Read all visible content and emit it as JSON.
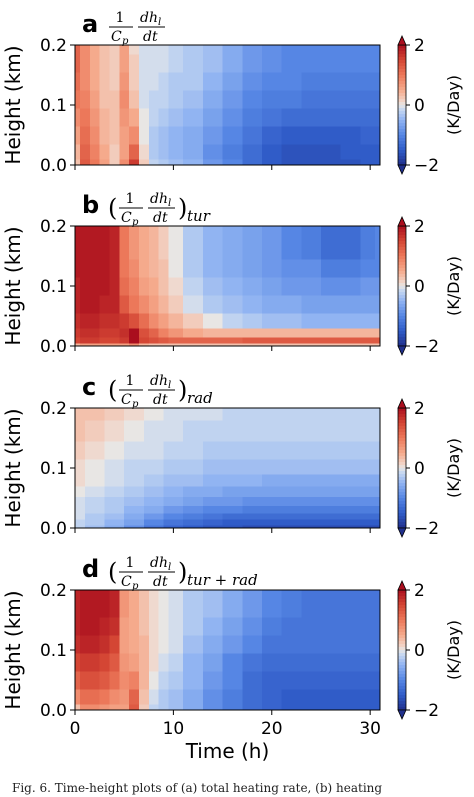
{
  "chart_data": [
    {
      "type": "heatmap",
      "panel_label": "a",
      "title_parts": {
        "lhs": "",
        "frac_num": "1",
        "frac_den": "C",
        "frac_den_sub": "p",
        "deriv_num": "dh",
        "deriv_num_sub": "l",
        "deriv_den": "dt",
        "rhs_sub": ""
      },
      "ylabel": "Height (km)",
      "yticks": [
        "0.0",
        "0.1",
        "0.2"
      ],
      "ylim": [
        0,
        0.2
      ],
      "xlim": [
        0,
        31
      ],
      "xticks_shown": false,
      "colorbar": {
        "label": "(K/Day)",
        "ticks": [
          "2",
          "0",
          "−2"
        ],
        "range": [
          -2,
          2
        ]
      },
      "grid": {
        "x": [
          0,
          1,
          2,
          3,
          4,
          5,
          6,
          7,
          8,
          9,
          10,
          12,
          14,
          16,
          18,
          20,
          22,
          24,
          26,
          28,
          30,
          31
        ],
        "y": [
          0,
          0.02,
          0.05,
          0.08,
          0.11,
          0.14,
          0.17,
          0.2
        ],
        "values": [
          [
            0.3,
            1.3,
            1.0,
            0.6,
            0.2,
            0.8,
            1.6,
            0.2,
            -0.2,
            -0.3,
            -0.4,
            -0.5,
            -0.8,
            -1.0,
            -1.3,
            -1.5,
            -1.6,
            -1.6,
            -1.6,
            -1.6,
            -1.5,
            -1.5
          ],
          [
            0.4,
            1.2,
            0.9,
            0.5,
            0.2,
            0.6,
            1.2,
            0.1,
            -0.3,
            -0.4,
            -0.5,
            -0.6,
            -0.9,
            -1.1,
            -1.3,
            -1.5,
            -1.6,
            -1.6,
            -1.6,
            -1.5,
            -1.5,
            -1.5
          ],
          [
            0.6,
            1.1,
            0.8,
            0.4,
            0.3,
            0.6,
            0.8,
            0.0,
            -0.3,
            -0.4,
            -0.5,
            -0.6,
            -0.8,
            -1.0,
            -1.2,
            -1.4,
            -1.5,
            -1.5,
            -1.5,
            -1.5,
            -1.4,
            -1.4
          ],
          [
            0.8,
            1.0,
            0.7,
            0.4,
            0.3,
            0.7,
            0.5,
            0.0,
            -0.2,
            -0.3,
            -0.4,
            -0.5,
            -0.7,
            -0.9,
            -1.1,
            -1.2,
            -1.3,
            -1.3,
            -1.3,
            -1.3,
            -1.3,
            -1.3
          ],
          [
            1.0,
            0.9,
            0.6,
            0.3,
            0.3,
            0.8,
            0.3,
            -0.1,
            -0.2,
            -0.2,
            -0.3,
            -0.4,
            -0.6,
            -0.8,
            -1.0,
            -1.1,
            -1.1,
            -1.2,
            -1.2,
            -1.2,
            -1.2,
            -1.2
          ],
          [
            1.1,
            0.8,
            0.5,
            0.3,
            0.2,
            0.7,
            0.2,
            -0.1,
            -0.1,
            -0.2,
            -0.3,
            -0.3,
            -0.5,
            -0.7,
            -0.9,
            -1.0,
            -1.0,
            -1.1,
            -1.1,
            -1.1,
            -1.1,
            -1.1
          ],
          [
            1.2,
            0.8,
            0.5,
            0.3,
            0.2,
            0.6,
            0.2,
            -0.1,
            -0.1,
            -0.1,
            -0.2,
            -0.3,
            -0.4,
            -0.6,
            -0.8,
            -0.9,
            -1.0,
            -1.0,
            -1.0,
            -1.0,
            -1.0,
            -1.0
          ],
          [
            1.2,
            0.8,
            0.5,
            0.3,
            0.2,
            0.6,
            0.1,
            -0.1,
            -0.1,
            -0.1,
            -0.2,
            -0.3,
            -0.4,
            -0.6,
            -0.8,
            -0.9,
            -1.0,
            -1.0,
            -1.0,
            -1.0,
            -1.0,
            -1.0
          ]
        ]
      }
    },
    {
      "type": "heatmap",
      "panel_label": "b",
      "title_parts": {
        "lhs": "(",
        "frac_num": "1",
        "frac_den": "C",
        "frac_den_sub": "p",
        "deriv_num": "dh",
        "deriv_num_sub": "l",
        "deriv_den": "dt",
        "rhs": ")",
        "rhs_sub": "tur"
      },
      "ylabel": "Height (km)",
      "yticks": [
        "0.0",
        "0.1",
        "0.2"
      ],
      "ylim": [
        0,
        0.2
      ],
      "xlim": [
        0,
        31
      ],
      "xticks_shown": false,
      "colorbar": {
        "label": "(K/Day)",
        "ticks": [
          "2",
          "0",
          "−2"
        ],
        "range": [
          -2,
          2
        ]
      },
      "grid": {
        "x": [
          0,
          1,
          2,
          3,
          4,
          5,
          6,
          7,
          8,
          9,
          10,
          12,
          14,
          16,
          18,
          20,
          22,
          24,
          26,
          28,
          30,
          31
        ],
        "y": [
          0,
          0.01,
          0.02,
          0.04,
          0.07,
          0.1,
          0.13,
          0.16,
          0.2
        ],
        "values": [
          [
            0.4,
            0.6,
            0.6,
            0.6,
            0.6,
            0.6,
            0.8,
            0.4,
            0.3,
            0.3,
            0.3,
            0.3,
            0.3,
            0.3,
            0.3,
            0.3,
            0.3,
            0.3,
            0.3,
            0.3,
            0.3,
            0.3
          ],
          [
            1.5,
            1.6,
            1.6,
            1.5,
            1.5,
            1.6,
            2.0,
            1.5,
            1.4,
            1.3,
            1.2,
            1.2,
            1.2,
            1.2,
            1.3,
            1.3,
            1.3,
            1.3,
            1.3,
            1.3,
            1.3,
            1.3
          ],
          [
            1.6,
            1.7,
            1.7,
            1.6,
            1.6,
            1.7,
            2.0,
            1.4,
            1.2,
            0.9,
            0.7,
            0.5,
            0.4,
            0.4,
            0.4,
            0.4,
            0.4,
            0.4,
            0.4,
            0.4,
            0.4,
            0.4
          ],
          [
            1.7,
            1.8,
            1.8,
            1.7,
            1.7,
            1.6,
            1.4,
            1.1,
            0.8,
            0.6,
            0.4,
            0.2,
            0.0,
            -0.2,
            -0.3,
            -0.4,
            -0.4,
            -0.5,
            -0.5,
            -0.5,
            -0.5,
            -0.5
          ],
          [
            1.8,
            1.9,
            1.9,
            1.8,
            1.8,
            1.3,
            1.0,
            0.8,
            0.6,
            0.4,
            0.2,
            -0.1,
            -0.3,
            -0.4,
            -0.5,
            -0.6,
            -0.6,
            -0.7,
            -0.7,
            -0.7,
            -0.7,
            -0.7
          ],
          [
            1.8,
            1.9,
            1.9,
            1.9,
            1.8,
            1.1,
            0.9,
            0.6,
            0.5,
            0.3,
            0.1,
            -0.2,
            -0.4,
            -0.5,
            -0.6,
            -0.7,
            -0.8,
            -0.8,
            -0.9,
            -0.9,
            -0.8,
            -0.8
          ],
          [
            1.9,
            1.9,
            1.9,
            1.9,
            1.8,
            1.0,
            0.8,
            0.5,
            0.4,
            0.3,
            0.0,
            -0.3,
            -0.5,
            -0.6,
            -0.7,
            -0.8,
            -0.9,
            -0.9,
            -1.1,
            -1.1,
            -1.0,
            -1.0
          ],
          [
            1.9,
            1.9,
            1.9,
            1.9,
            1.8,
            1.0,
            0.7,
            0.5,
            0.4,
            0.2,
            0.0,
            -0.3,
            -0.5,
            -0.6,
            -0.7,
            -0.8,
            -1.0,
            -1.1,
            -1.3,
            -1.3,
            -1.1,
            -1.0
          ],
          [
            1.9,
            1.9,
            1.9,
            1.9,
            1.8,
            1.0,
            0.7,
            0.5,
            0.4,
            0.2,
            0.0,
            -0.3,
            -0.5,
            -0.6,
            -0.7,
            -0.8,
            -1.0,
            -1.1,
            -1.3,
            -1.3,
            -1.1,
            -1.0
          ]
        ]
      }
    },
    {
      "type": "heatmap",
      "panel_label": "c",
      "title_parts": {
        "lhs": "(",
        "frac_num": "1",
        "frac_den": "C",
        "frac_den_sub": "p",
        "deriv_num": "dh",
        "deriv_num_sub": "l",
        "deriv_den": "dt",
        "rhs": ")",
        "rhs_sub": "rad"
      },
      "ylabel": "Height (km)",
      "yticks": [
        "0.0",
        "0.1",
        "0.2"
      ],
      "ylim": [
        0,
        0.2
      ],
      "xlim": [
        0,
        31
      ],
      "xticks_shown": false,
      "colorbar": {
        "label": "(K/Day)",
        "ticks": [
          "2",
          "0",
          "−2"
        ],
        "range": [
          -2,
          2
        ]
      },
      "grid": {
        "x": [
          0,
          2,
          4,
          6,
          8,
          10,
          12,
          14,
          16,
          18,
          20,
          22,
          24,
          26,
          28,
          30,
          31
        ],
        "y": [
          0,
          0.01,
          0.02,
          0.03,
          0.045,
          0.06,
          0.08,
          0.1,
          0.13,
          0.16,
          0.2
        ],
        "values": [
          [
            -0.2,
            -0.4,
            -0.6,
            -0.9,
            -1.2,
            -1.4,
            -1.5,
            -1.6,
            -1.6,
            -1.7,
            -1.7,
            -1.7,
            -1.7,
            -1.7,
            -1.7,
            -1.7,
            -1.7
          ],
          [
            -0.2,
            -0.3,
            -0.5,
            -0.7,
            -1.0,
            -1.2,
            -1.3,
            -1.4,
            -1.5,
            -1.5,
            -1.5,
            -1.5,
            -1.5,
            -1.5,
            -1.5,
            -1.5,
            -1.5
          ],
          [
            -0.1,
            -0.3,
            -0.4,
            -0.6,
            -0.8,
            -1.0,
            -1.1,
            -1.2,
            -1.3,
            -1.3,
            -1.3,
            -1.3,
            -1.3,
            -1.3,
            -1.3,
            -1.3,
            -1.3
          ],
          [
            -0.1,
            -0.2,
            -0.3,
            -0.5,
            -0.6,
            -0.8,
            -0.9,
            -1.0,
            -1.0,
            -1.1,
            -1.1,
            -1.1,
            -1.1,
            -1.1,
            -1.1,
            -1.1,
            -1.1
          ],
          [
            -0.1,
            -0.2,
            -0.3,
            -0.4,
            -0.5,
            -0.6,
            -0.7,
            -0.8,
            -0.8,
            -0.9,
            -0.9,
            -0.9,
            -0.9,
            -0.9,
            -0.9,
            -0.9,
            -0.9
          ],
          [
            0.0,
            -0.1,
            -0.2,
            -0.3,
            -0.4,
            -0.5,
            -0.6,
            -0.6,
            -0.7,
            -0.7,
            -0.7,
            -0.7,
            -0.7,
            -0.7,
            -0.7,
            -0.7,
            -0.7
          ],
          [
            0.1,
            0.0,
            -0.1,
            -0.2,
            -0.3,
            -0.4,
            -0.4,
            -0.5,
            -0.5,
            -0.5,
            -0.6,
            -0.6,
            -0.6,
            -0.6,
            -0.6,
            -0.6,
            -0.6
          ],
          [
            0.1,
            0.0,
            -0.1,
            -0.2,
            -0.2,
            -0.3,
            -0.3,
            -0.4,
            -0.4,
            -0.4,
            -0.4,
            -0.4,
            -0.4,
            -0.4,
            -0.4,
            -0.4,
            -0.4
          ],
          [
            0.2,
            0.1,
            0.0,
            -0.1,
            -0.1,
            -0.2,
            -0.2,
            -0.3,
            -0.3,
            -0.3,
            -0.3,
            -0.3,
            -0.3,
            -0.3,
            -0.3,
            -0.3,
            -0.3
          ],
          [
            0.3,
            0.2,
            0.1,
            0.0,
            -0.1,
            -0.1,
            -0.2,
            -0.2,
            -0.2,
            -0.2,
            -0.2,
            -0.2,
            -0.2,
            -0.2,
            -0.2,
            -0.2,
            -0.2
          ],
          [
            0.3,
            0.3,
            0.2,
            0.1,
            0.0,
            -0.1,
            -0.1,
            -0.1,
            -0.2,
            -0.2,
            -0.2,
            -0.2,
            -0.2,
            -0.2,
            -0.2,
            -0.2,
            -0.2
          ]
        ]
      }
    },
    {
      "type": "heatmap",
      "panel_label": "d",
      "title_parts": {
        "lhs": "(",
        "frac_num": "1",
        "frac_den": "C",
        "frac_den_sub": "p",
        "deriv_num": "dh",
        "deriv_num_sub": "l",
        "deriv_den": "dt",
        "rhs": ")",
        "rhs_sub": "tur + rad"
      },
      "ylabel": "Height (km)",
      "yticks": [
        "0.0",
        "0.1",
        "0.2"
      ],
      "ylim": [
        0,
        0.2
      ],
      "xlim": [
        0,
        31
      ],
      "xlabel": "Time (h)",
      "xticks": [
        "0",
        "10",
        "20",
        "30"
      ],
      "xtick_values": [
        0,
        10,
        20,
        30
      ],
      "colorbar": {
        "label": "(K/Day)",
        "ticks": [
          "2",
          "0",
          "−2"
        ],
        "range": [
          -2,
          2
        ]
      },
      "grid": {
        "x": [
          0,
          1,
          2,
          3,
          4,
          5,
          6,
          7,
          8,
          9,
          10,
          12,
          14,
          16,
          18,
          20,
          22,
          24,
          26,
          28,
          30,
          31
        ],
        "y": [
          0,
          0.02,
          0.05,
          0.08,
          0.11,
          0.14,
          0.17,
          0.2
        ],
        "values": [
          [
            0.3,
            0.8,
            0.8,
            0.7,
            0.6,
            0.6,
            1.3,
            0.2,
            -0.2,
            -0.3,
            -0.4,
            -0.6,
            -0.9,
            -1.1,
            -1.3,
            -1.4,
            -1.5,
            -1.5,
            -1.5,
            -1.5,
            -1.5,
            -1.5
          ],
          [
            0.8,
            1.1,
            1.1,
            1.0,
            0.8,
            0.7,
            1.2,
            0.3,
            -0.1,
            -0.3,
            -0.4,
            -0.6,
            -0.9,
            -1.1,
            -1.3,
            -1.4,
            -1.5,
            -1.5,
            -1.5,
            -1.5,
            -1.5,
            -1.5
          ],
          [
            1.2,
            1.4,
            1.4,
            1.3,
            1.1,
            0.8,
            0.9,
            0.4,
            0.0,
            -0.2,
            -0.3,
            -0.5,
            -0.8,
            -1.0,
            -1.3,
            -1.4,
            -1.4,
            -1.4,
            -1.4,
            -1.4,
            -1.4,
            -1.4
          ],
          [
            1.5,
            1.6,
            1.6,
            1.5,
            1.3,
            0.7,
            0.6,
            0.4,
            0.1,
            -0.1,
            -0.2,
            -0.5,
            -0.7,
            -1.0,
            -1.2,
            -1.3,
            -1.3,
            -1.3,
            -1.3,
            -1.3,
            -1.3,
            -1.3
          ],
          [
            1.7,
            1.8,
            1.8,
            1.7,
            1.5,
            0.6,
            0.5,
            0.4,
            0.1,
            0.0,
            -0.1,
            -0.4,
            -0.6,
            -0.8,
            -1.0,
            -1.2,
            -1.2,
            -1.2,
            -1.2,
            -1.2,
            -1.2,
            -1.2
          ],
          [
            1.8,
            1.9,
            1.9,
            1.8,
            1.7,
            0.6,
            0.5,
            0.3,
            0.1,
            0.0,
            -0.1,
            -0.3,
            -0.5,
            -0.7,
            -0.9,
            -1.1,
            -1.2,
            -1.2,
            -1.2,
            -1.2,
            -1.2,
            -1.2
          ],
          [
            1.8,
            1.9,
            1.9,
            1.9,
            1.8,
            0.7,
            0.5,
            0.3,
            0.1,
            0.0,
            -0.1,
            -0.3,
            -0.4,
            -0.6,
            -0.8,
            -1.0,
            -1.1,
            -1.2,
            -1.2,
            -1.2,
            -1.2,
            -1.2
          ],
          [
            1.8,
            1.9,
            1.9,
            1.9,
            1.8,
            0.7,
            0.5,
            0.3,
            0.1,
            0.0,
            -0.1,
            -0.3,
            -0.4,
            -0.6,
            -0.8,
            -1.0,
            -1.1,
            -1.2,
            -1.2,
            -1.2,
            -1.2,
            -1.2
          ]
        ]
      }
    }
  ],
  "caption": "Fig. 6. Time-height plots of (a) total heating rate, (b) heating"
}
